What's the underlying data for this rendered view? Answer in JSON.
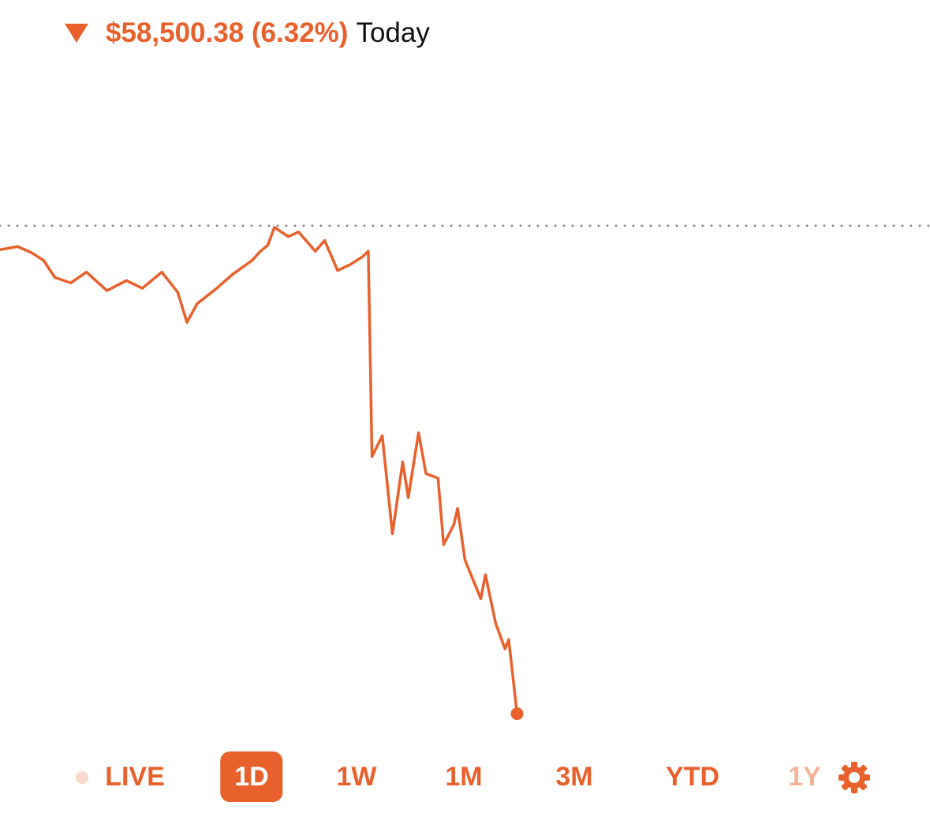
{
  "header": {
    "change": "$58,500.38 (6.32%)",
    "period": "Today"
  },
  "chart_data": {
    "type": "line",
    "color": "#e8612c",
    "x": [
      0,
      1.9,
      3.4,
      4.7,
      5.9,
      7.6,
      9.3,
      11.5,
      13.6,
      15.3,
      17.4,
      19.1,
      20.1,
      21.2,
      23.3,
      25.0,
      27.1,
      28.0,
      28.8,
      29.5,
      31.0,
      32.1,
      33.9,
      34.9,
      36.3,
      37.7,
      39.0,
      39.6,
      40.0,
      41.1,
      42.2,
      43.3,
      43.9,
      45.0,
      45.8,
      47.1,
      47.7,
      48.8,
      49.2,
      50.0,
      51.7,
      52.2,
      53.3,
      54.3,
      54.7,
      55.6
    ],
    "values": [
      -0.31,
      -0.27,
      -0.35,
      -0.45,
      -0.67,
      -0.74,
      -0.6,
      -0.84,
      -0.71,
      -0.81,
      -0.6,
      -0.86,
      -1.25,
      -1.01,
      -0.81,
      -0.63,
      -0.45,
      -0.33,
      -0.25,
      -0.02,
      -0.14,
      -0.08,
      -0.33,
      -0.19,
      -0.58,
      -0.5,
      -0.4,
      -0.33,
      -2.99,
      -2.72,
      -3.99,
      -3.06,
      -3.52,
      -2.68,
      -3.21,
      -3.27,
      -4.13,
      -3.87,
      -3.66,
      -4.33,
      -4.83,
      -4.52,
      -5.15,
      -5.48,
      -5.36,
      -6.32
    ],
    "xlim": [
      0,
      100
    ],
    "ylim": [
      -6.6,
      2.5
    ],
    "reference": 0
  },
  "tabs": {
    "items": [
      "LIVE",
      "1D",
      "1W",
      "1M",
      "3M",
      "YTD",
      "1Y"
    ],
    "selected_index": 1
  }
}
